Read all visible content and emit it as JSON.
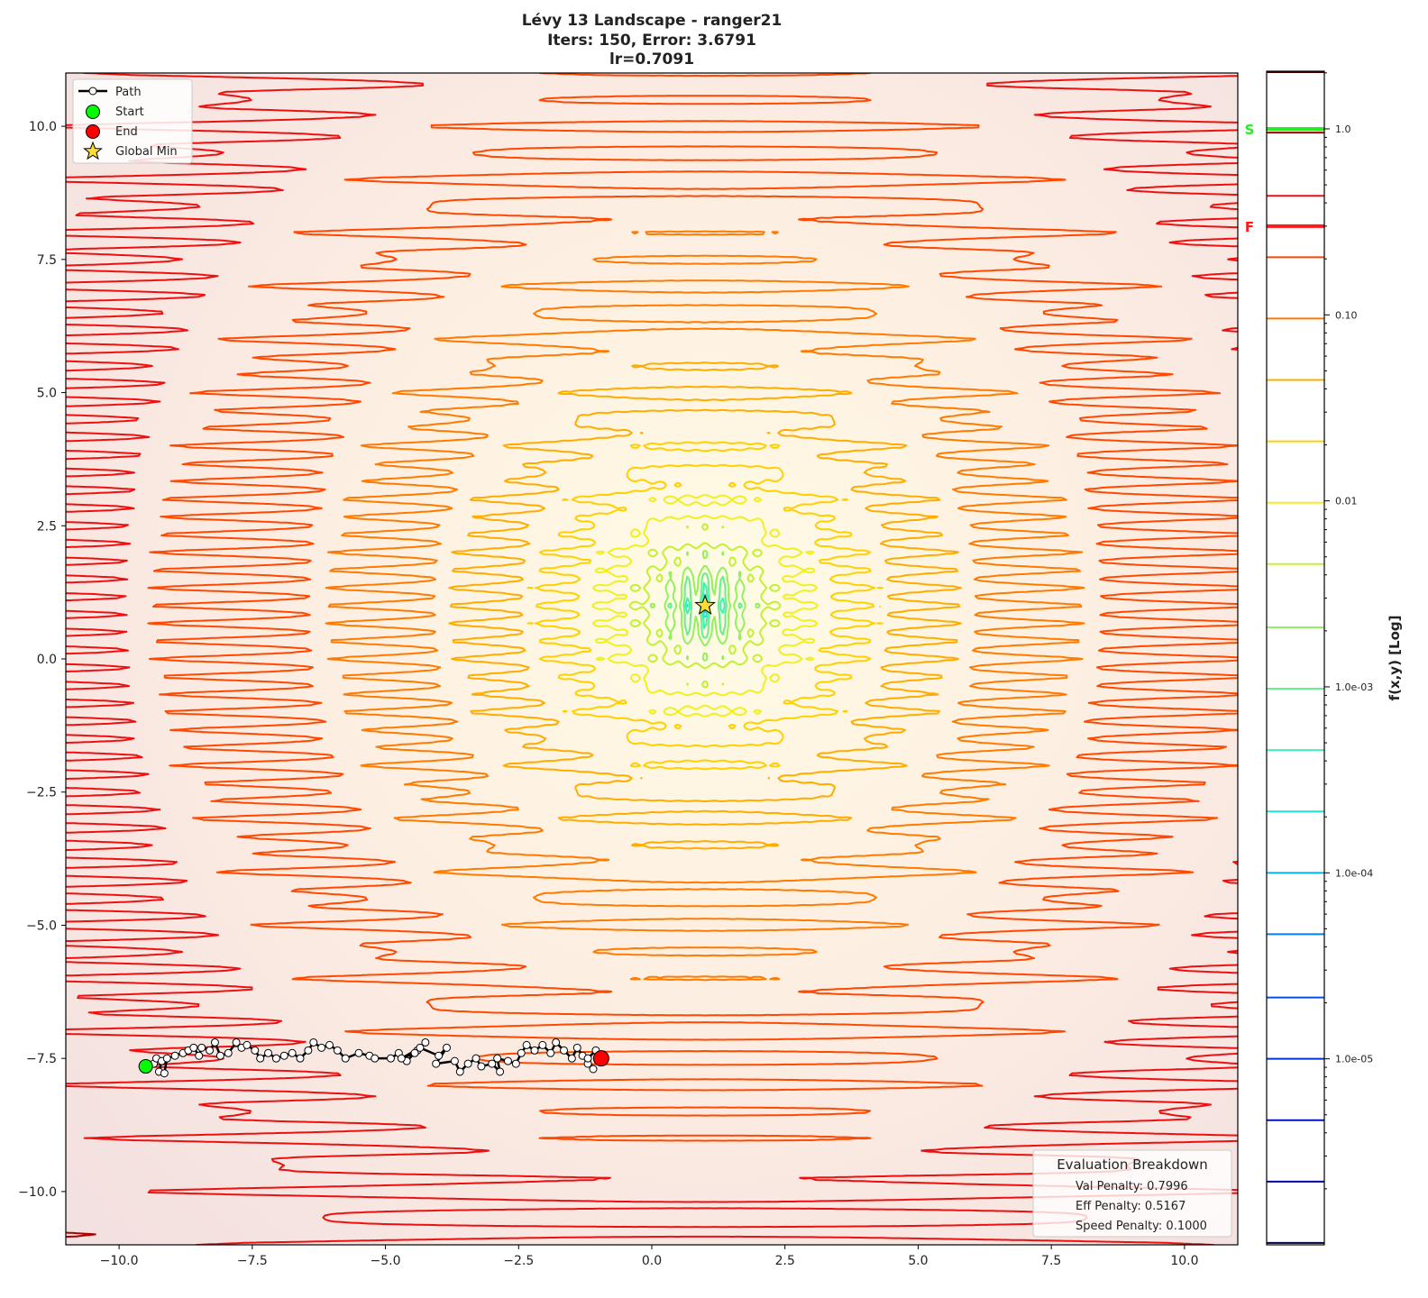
{
  "chart_data": {
    "type": "contour",
    "title_lines": [
      "Lévy 13 Landscape - ranger21",
      "Iters: 150, Error: 3.6791",
      "lr=0.7091"
    ],
    "xlim": [
      -11,
      11
    ],
    "ylim": [
      -11,
      11
    ],
    "x_ticks": [
      -10.0,
      -7.5,
      -5.0,
      -2.5,
      0.0,
      2.5,
      5.0,
      7.5,
      10.0
    ],
    "x_tick_labels": [
      "−10.0",
      "−7.5",
      "−5.0",
      "−2.5",
      "0.0",
      "2.5",
      "5.0",
      "7.5",
      "10.0"
    ],
    "y_ticks": [
      10.0,
      7.5,
      5.0,
      2.5,
      0.0,
      -2.5,
      -5.0,
      -7.5,
      -10.0
    ],
    "y_tick_labels": [
      "10.0",
      "7.5",
      "5.0",
      "2.5",
      "0.0",
      "−2.5",
      "−5.0",
      "−7.5",
      "−10.0"
    ],
    "grid": false,
    "function": "Lévy 13",
    "global_min": [
      1,
      1
    ],
    "contour_level_exponents": [
      -5.99,
      -5.66,
      -5.33,
      -5.0,
      -4.67,
      -4.33,
      -4.0,
      -3.67,
      -3.34,
      -3.01,
      -2.68,
      -2.34,
      -2.01,
      -1.68,
      -1.35,
      -1.02,
      -0.69,
      -0.36,
      -0.02,
      0.31
    ],
    "contour_colors": [
      "#00003c",
      "#0000a0",
      "#0014c4",
      "#0032d8",
      "#0050e8",
      "#0080f4",
      "#00b4f0",
      "#20e4d4",
      "#40f0b0",
      "#64f08c",
      "#94f05c",
      "#c4f034",
      "#f0f020",
      "#ffd000",
      "#ffac00",
      "#ff7a00",
      "#ff4800",
      "#ee1010",
      "#aa0000",
      "#400000"
    ],
    "path": {
      "x": [
        -9.5,
        -9.35,
        -9.3,
        -9.2,
        -9.25,
        -9.15,
        -9.1,
        -8.95,
        -8.8,
        -8.7,
        -8.6,
        -8.5,
        -8.45,
        -8.3,
        -8.2,
        -8.1,
        -7.95,
        -7.8,
        -7.7,
        -7.6,
        -7.45,
        -7.35,
        -7.2,
        -7.05,
        -6.9,
        -6.75,
        -6.6,
        -6.45,
        -6.35,
        -6.2,
        -6.05,
        -5.9,
        -5.75,
        -5.5,
        -5.3,
        -5.2,
        -4.9,
        -4.75,
        -4.6,
        -4.4,
        -4.25,
        -4.45,
        -4.7,
        -4.35,
        -4.0,
        -3.85,
        -4.05,
        -3.7,
        -3.6,
        -3.45,
        -3.3,
        -3.2,
        -3.0,
        -2.85,
        -2.9,
        -2.7,
        -2.55,
        -2.45,
        -2.35,
        -2.2,
        -2.05,
        -1.9,
        -1.8,
        -1.65,
        -1.5,
        -1.4,
        -1.3,
        -1.2,
        -1.1,
        -1.2,
        -1.05,
        -0.95
      ],
      "y": [
        -7.65,
        -7.6,
        -7.5,
        -7.55,
        -7.75,
        -7.78,
        -7.5,
        -7.45,
        -7.4,
        -7.35,
        -7.3,
        -7.45,
        -7.3,
        -7.35,
        -7.2,
        -7.45,
        -7.4,
        -7.2,
        -7.3,
        -7.25,
        -7.35,
        -7.5,
        -7.4,
        -7.5,
        -7.45,
        -7.4,
        -7.5,
        -7.35,
        -7.2,
        -7.3,
        -7.25,
        -7.35,
        -7.5,
        -7.4,
        -7.45,
        -7.5,
        -7.5,
        -7.4,
        -7.55,
        -7.35,
        -7.2,
        -7.4,
        -7.5,
        -7.3,
        -7.45,
        -7.3,
        -7.6,
        -7.55,
        -7.75,
        -7.6,
        -7.5,
        -7.65,
        -7.6,
        -7.75,
        -7.5,
        -7.55,
        -7.6,
        -7.4,
        -7.25,
        -7.35,
        -7.25,
        -7.4,
        -7.2,
        -7.35,
        -7.5,
        -7.3,
        -7.45,
        -7.6,
        -7.7,
        -7.5,
        -7.35,
        -7.5
      ]
    },
    "start": [
      -9.5,
      -7.65
    ],
    "end": [
      -0.95,
      -7.5
    ],
    "colors": {
      "path": "#000000",
      "start": "#00ff00",
      "end": "#ff0000",
      "global_min": "#ffdd33"
    },
    "legend": {
      "placement": "top-left",
      "entries": [
        "Path",
        "Start",
        "End",
        "Global Min"
      ]
    },
    "colorbar": {
      "label": "f(x,y) [Log]",
      "scale": "log",
      "range_exponents": [
        -6,
        0.31
      ],
      "ticks": [
        1.0,
        0.1,
        0.01,
        0.001,
        0.0001,
        1e-05
      ],
      "tick_labels": [
        "1.0",
        "0.10",
        "0.01",
        "1.0e-03",
        "1.0e-04",
        "1.0e-05"
      ],
      "markers": [
        {
          "label": "S",
          "value": 1.0,
          "color": "#22ee22"
        },
        {
          "label": "F",
          "value": 0.3,
          "color": "#ff1a1a"
        }
      ]
    },
    "breakdown": {
      "title": "Evaluation Breakdown",
      "lines": [
        "Val Penalty: 0.7996",
        "Eff Penalty: 0.5167",
        "Speed Penalty: 0.1000"
      ]
    }
  }
}
